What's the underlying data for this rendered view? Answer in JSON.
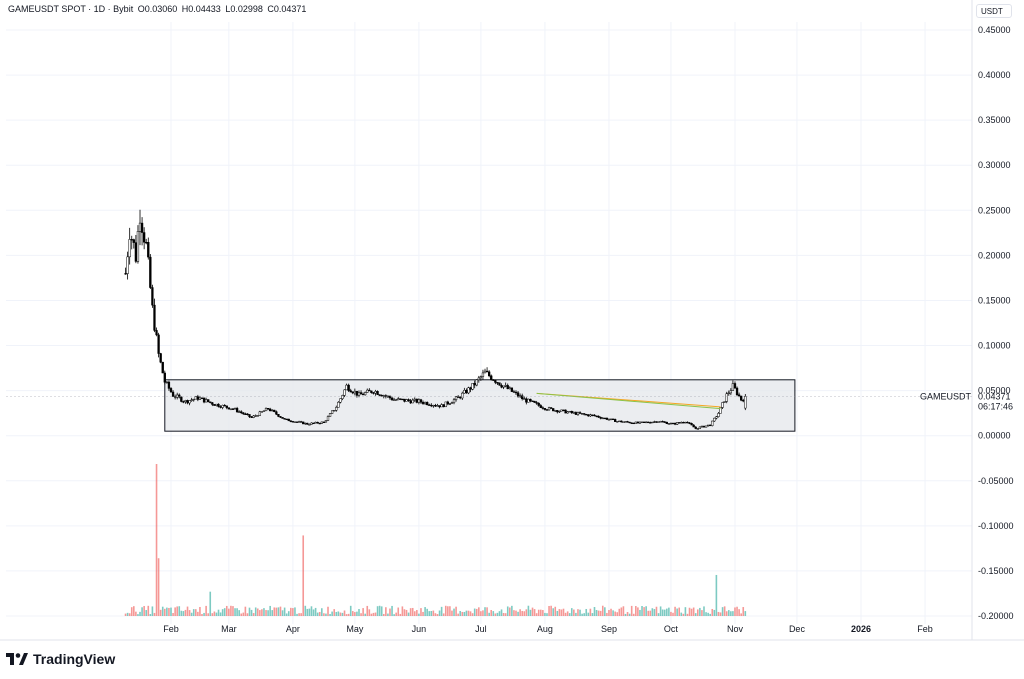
{
  "header": {
    "symbol_line": "GAMEUSDT SPOT · 1D · Bybit",
    "open": "O0.03060",
    "high": "H0.04433",
    "low": "L0.02998",
    "close": "C0.04371"
  },
  "currency_button": "USDT",
  "brand": "TradingView",
  "price_badge": {
    "symbol": "GAMEUSDT",
    "price": "0.04371",
    "countdown": "06:17:46"
  },
  "colors": {
    "up": "#26a69a",
    "down": "#ef5350",
    "candle": "#000000",
    "range_box_fill": "#e6e8ec",
    "line_orange": "#f5a623",
    "line_green": "#8bc34a",
    "grid": "#f0f3fa"
  },
  "chart_data": {
    "type": "candlestick",
    "symbol": "GAMEUSDT",
    "interval": "1D",
    "y_ticks": [
      "0.45000",
      "0.40000",
      "0.35000",
      "0.30000",
      "0.25000",
      "0.20000",
      "0.15000",
      "0.10000",
      "0.05000",
      "0.00000",
      "-0.05000",
      "-0.10000",
      "-0.15000",
      "-0.20000"
    ],
    "ylim": [
      -0.2,
      0.45
    ],
    "x_ticks": [
      "Feb",
      "Mar",
      "Apr",
      "May",
      "Jun",
      "Jul",
      "Aug",
      "Sep",
      "Oct",
      "Nov",
      "Dec",
      "2026",
      "Feb"
    ],
    "x_tick_bold": [
      "2026"
    ],
    "last_price": 0.04371,
    "range_box": {
      "top": 0.062,
      "bottom": 0.005,
      "start": "2025-01-29",
      "end": "2025-11-30"
    },
    "trend_lines": [
      {
        "color": "orange",
        "from": [
          "2025-07-28",
          0.047
        ],
        "to": [
          "2025-10-25",
          0.032
        ]
      },
      {
        "color": "green",
        "from": [
          "2025-07-28",
          0.047
        ],
        "to": [
          "2025-10-25",
          0.03
        ]
      }
    ],
    "close_anchors": [
      [
        "2025-01-10",
        0.18
      ],
      [
        "2025-01-12",
        0.23
      ],
      [
        "2025-01-15",
        0.2
      ],
      [
        "2025-01-17",
        0.25
      ],
      [
        "2025-01-20",
        0.21
      ],
      [
        "2025-01-23",
        0.14
      ],
      [
        "2025-01-26",
        0.09
      ],
      [
        "2025-01-29",
        0.06
      ],
      [
        "2025-02-02",
        0.045
      ],
      [
        "2025-02-08",
        0.038
      ],
      [
        "2025-02-14",
        0.042
      ],
      [
        "2025-02-22",
        0.035
      ],
      [
        "2025-03-03",
        0.03
      ],
      [
        "2025-03-12",
        0.02
      ],
      [
        "2025-03-20",
        0.03
      ],
      [
        "2025-03-28",
        0.018
      ],
      [
        "2025-04-08",
        0.013
      ],
      [
        "2025-04-16",
        0.015
      ],
      [
        "2025-04-22",
        0.032
      ],
      [
        "2025-04-27",
        0.055
      ],
      [
        "2025-05-03",
        0.045
      ],
      [
        "2025-05-10",
        0.05
      ],
      [
        "2025-05-20",
        0.04
      ],
      [
        "2025-06-01",
        0.038
      ],
      [
        "2025-06-12",
        0.033
      ],
      [
        "2025-06-20",
        0.042
      ],
      [
        "2025-06-27",
        0.055
      ],
      [
        "2025-07-03",
        0.07
      ],
      [
        "2025-07-12",
        0.055
      ],
      [
        "2025-07-22",
        0.04
      ],
      [
        "2025-08-02",
        0.03
      ],
      [
        "2025-08-15",
        0.025
      ],
      [
        "2025-08-25",
        0.022
      ],
      [
        "2025-09-05",
        0.016
      ],
      [
        "2025-09-15",
        0.014
      ],
      [
        "2025-09-25",
        0.016
      ],
      [
        "2025-10-02",
        0.013
      ],
      [
        "2025-10-08",
        0.016
      ],
      [
        "2025-10-13",
        0.008
      ],
      [
        "2025-10-20",
        0.012
      ],
      [
        "2025-10-24",
        0.025
      ],
      [
        "2025-10-28",
        0.045
      ],
      [
        "2025-10-31",
        0.055
      ],
      [
        "2025-11-04",
        0.04
      ],
      [
        "2025-11-06",
        0.04371
      ]
    ],
    "volume": {
      "max_value": 100,
      "spikes": [
        {
          "date": "2025-01-25",
          "value": 100,
          "dir": "down"
        },
        {
          "date": "2025-01-26",
          "value": 38,
          "dir": "down"
        },
        {
          "date": "2025-02-20",
          "value": 16,
          "dir": "up"
        },
        {
          "date": "2025-04-06",
          "value": 53,
          "dir": "down"
        },
        {
          "date": "2025-10-23",
          "value": 27,
          "dir": "up"
        }
      ],
      "baseline_level": 4
    }
  }
}
